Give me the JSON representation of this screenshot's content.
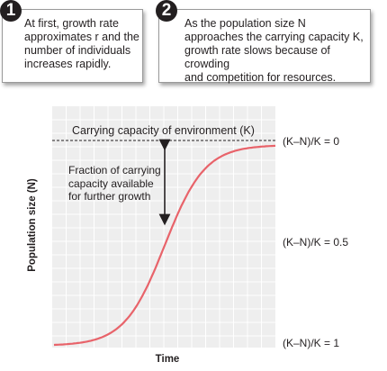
{
  "callouts": [
    {
      "number": "1",
      "lines": [
        "At first, growth rate",
        "approximates r and the",
        "number of individuals",
        "increases rapidly."
      ]
    },
    {
      "number": "2",
      "lines": [
        "As the population size N",
        "approaches the carrying capacity K,",
        "growth rate slows because of crowding",
        "and competition for resources."
      ]
    }
  ],
  "chart": {
    "carrying_capacity_label": "Carrying capacity of environment (K)",
    "fraction_lines": [
      "Fraction of carrying",
      "capacity available",
      "for further growth"
    ],
    "right_labels": [
      "(K–N)/K = 0",
      "(K–N)/K = 0.5",
      "(K–N)/K = 1"
    ],
    "y_label": "Population size (N)",
    "x_label": "Time",
    "colors": {
      "curve": "#e8636a",
      "plot_bg": "#eeeeee",
      "grid": "#ffffff",
      "text": "#231f20"
    }
  },
  "chart_data": {
    "type": "line",
    "xlabel": "Time",
    "ylabel": "Population size (N)",
    "ylim": [
      0,
      1
    ],
    "grid": true,
    "series": [
      {
        "x": [
          0,
          0.1,
          0.2,
          0.3,
          0.4,
          0.5,
          0.6,
          0.7,
          0.8,
          0.9,
          1.0
        ],
        "values": [
          0.0,
          0.02,
          0.06,
          0.16,
          0.34,
          0.58,
          0.77,
          0.88,
          0.94,
          0.97,
          0.99
        ]
      }
    ],
    "reference_lines": [
      {
        "y": 1.0,
        "label": "Carrying capacity of environment (K)"
      }
    ]
  }
}
